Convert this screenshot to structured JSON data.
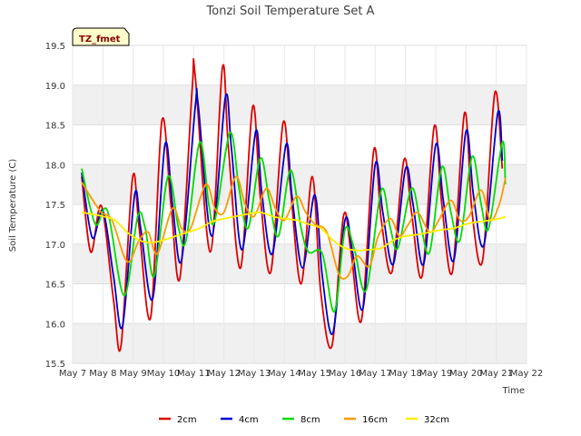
{
  "chart_data": {
    "type": "line",
    "title": "Tonzi Soil Temperature Set A",
    "xlabel": "Time",
    "ylabel": "Soil Temperature (C)",
    "badge": "TZ_fmet",
    "xlim": [
      7,
      22
    ],
    "ylim": [
      15.5,
      19.5
    ],
    "x_ticks": [
      7,
      8,
      9,
      10,
      11,
      12,
      13,
      14,
      15,
      16,
      17,
      18,
      19,
      20,
      21,
      22
    ],
    "x_tick_labels": [
      "May 7",
      "May 8",
      "May 9",
      "May 10",
      "May 11",
      "May 12",
      "May 13",
      "May 14",
      "May 15",
      "May 16",
      "May 17",
      "May 18",
      "May 19",
      "May 20",
      "May 21",
      "May 22"
    ],
    "y_ticks": [
      15.5,
      16.0,
      16.5,
      17.0,
      17.5,
      18.0,
      18.5,
      19.0,
      19.5
    ],
    "y_tick_labels": [
      "15.5",
      "16.0",
      "16.5",
      "17.0",
      "17.5",
      "18.0",
      "18.5",
      "19.0",
      "19.5"
    ],
    "grid": true,
    "legend_position": "bottom",
    "series": [
      {
        "name": "2cm",
        "color": "#dd0000",
        "x": [
          7.3,
          7.6,
          7.95,
          8.35,
          8.6,
          8.98,
          9.2,
          9.58,
          9.95,
          10.25,
          10.55,
          10.95,
          11.05,
          11.55,
          11.95,
          12.15,
          12.55,
          12.95,
          13.2,
          13.55,
          13.95,
          14.2,
          14.55,
          14.92,
          15.2,
          15.57,
          15.95,
          16.2,
          16.55,
          16.95,
          17.2,
          17.55,
          17.95,
          18.2,
          18.55,
          18.95,
          19.2,
          19.55,
          19.95,
          20.2,
          20.55,
          20.95,
          21.2
        ],
        "y": [
          17.85,
          16.9,
          17.48,
          16.3,
          15.72,
          17.83,
          17.2,
          16.08,
          18.55,
          17.5,
          16.58,
          18.95,
          19.12,
          16.9,
          19.22,
          18.2,
          16.7,
          18.73,
          17.6,
          16.65,
          18.52,
          17.7,
          16.5,
          17.85,
          16.4,
          15.72,
          17.35,
          16.9,
          16.05,
          18.18,
          17.3,
          16.65,
          18.06,
          17.4,
          16.6,
          18.48,
          17.5,
          16.65,
          18.65,
          17.4,
          16.8,
          18.9,
          17.95
        ]
      },
      {
        "name": "4cm",
        "color": "#0000cc",
        "x": [
          7.3,
          7.65,
          8.0,
          8.35,
          8.65,
          9.05,
          9.25,
          9.65,
          10.05,
          10.3,
          10.6,
          11.05,
          11.15,
          11.6,
          12.05,
          12.25,
          12.6,
          13.05,
          13.25,
          13.6,
          14.05,
          14.25,
          14.6,
          15.0,
          15.25,
          15.6,
          16.0,
          16.25,
          16.6,
          17.0,
          17.25,
          17.6,
          18.0,
          18.25,
          18.6,
          19.0,
          19.25,
          19.6,
          20.0,
          20.25,
          20.6,
          21.05,
          21.2
        ],
        "y": [
          17.9,
          17.08,
          17.42,
          16.6,
          15.97,
          17.62,
          17.2,
          16.32,
          18.25,
          17.5,
          16.8,
          18.72,
          18.75,
          17.1,
          18.85,
          18.2,
          16.93,
          18.42,
          17.65,
          16.88,
          18.25,
          17.6,
          16.7,
          17.62,
          16.6,
          15.88,
          17.3,
          16.9,
          16.2,
          18.0,
          17.4,
          16.75,
          17.95,
          17.5,
          16.75,
          18.25,
          17.55,
          16.8,
          18.42,
          17.6,
          17.0,
          18.65,
          18.05
        ]
      },
      {
        "name": "8cm",
        "color": "#00dd00",
        "x": [
          7.3,
          7.75,
          8.15,
          8.7,
          9.15,
          9.4,
          9.7,
          10.15,
          10.5,
          10.75,
          11.2,
          11.5,
          11.7,
          12.2,
          12.5,
          12.8,
          13.2,
          13.5,
          13.8,
          14.2,
          14.55,
          14.8,
          15.25,
          15.65,
          16.0,
          16.3,
          16.7,
          17.2,
          17.5,
          17.75,
          18.2,
          18.5,
          18.8,
          19.2,
          19.5,
          19.8,
          20.2,
          20.5,
          20.75,
          21.2,
          21.3
        ],
        "y": [
          17.95,
          17.25,
          17.42,
          16.35,
          17.35,
          17.2,
          16.6,
          17.85,
          17.2,
          17.05,
          18.28,
          17.5,
          17.3,
          18.4,
          17.7,
          17.2,
          18.08,
          17.55,
          17.1,
          17.93,
          17.2,
          16.9,
          16.88,
          16.15,
          17.18,
          16.95,
          16.42,
          17.68,
          17.2,
          16.95,
          17.7,
          17.25,
          16.9,
          17.97,
          17.4,
          17.05,
          18.1,
          17.5,
          17.2,
          18.28,
          17.75
        ]
      },
      {
        "name": "16cm",
        "color": "#ff9900",
        "x": [
          7.3,
          7.9,
          8.3,
          8.8,
          9.2,
          9.5,
          9.8,
          10.3,
          10.6,
          10.9,
          11.4,
          11.7,
          12.0,
          12.4,
          12.7,
          13.0,
          13.4,
          13.7,
          14.0,
          14.4,
          14.7,
          15.0,
          15.4,
          15.8,
          16.1,
          16.4,
          16.8,
          17.1,
          17.5,
          17.8,
          18.1,
          18.4,
          18.8,
          19.1,
          19.5,
          19.8,
          20.1,
          20.5,
          20.8,
          21.1,
          21.3
        ],
        "y": [
          17.78,
          17.42,
          17.3,
          16.78,
          17.05,
          17.15,
          16.88,
          17.45,
          17.2,
          17.2,
          17.75,
          17.45,
          17.4,
          17.85,
          17.5,
          17.35,
          17.7,
          17.45,
          17.3,
          17.6,
          17.4,
          17.25,
          17.15,
          16.62,
          16.6,
          16.85,
          16.72,
          17.1,
          17.32,
          17.1,
          17.25,
          17.4,
          17.15,
          17.3,
          17.55,
          17.3,
          17.35,
          17.68,
          17.3,
          17.5,
          17.83
        ]
      },
      {
        "name": "32cm",
        "color": "#ffee00",
        "x": [
          7.3,
          7.6,
          8.0,
          8.4,
          8.8,
          9.2,
          9.6,
          10.0,
          10.4,
          10.8,
          11.2,
          11.6,
          12.0,
          12.4,
          12.8,
          13.2,
          13.6,
          14.0,
          14.4,
          14.8,
          15.2,
          15.6,
          16.0,
          16.4,
          16.8,
          17.2,
          17.6,
          18.0,
          18.4,
          18.8,
          19.2,
          19.6,
          20.0,
          20.4,
          20.8,
          21.2,
          21.3
        ],
        "y": [
          17.4,
          17.38,
          17.35,
          17.3,
          17.15,
          17.05,
          17.02,
          17.05,
          17.1,
          17.15,
          17.2,
          17.28,
          17.32,
          17.35,
          17.38,
          17.4,
          17.35,
          17.32,
          17.3,
          17.25,
          17.2,
          17.05,
          16.95,
          16.92,
          16.93,
          16.95,
          17.05,
          17.1,
          17.12,
          17.15,
          17.18,
          17.2,
          17.25,
          17.28,
          17.3,
          17.33,
          17.35
        ]
      }
    ]
  }
}
